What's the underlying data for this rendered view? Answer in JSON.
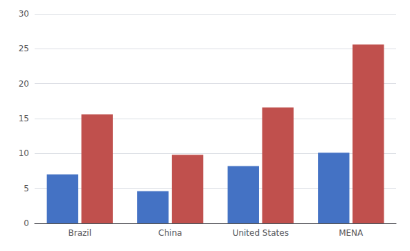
{
  "chart_data": {
    "type": "bar",
    "categories": [
      "Brazil",
      "China",
      "United States",
      "MENA"
    ],
    "series": [
      {
        "color": "#4472C4",
        "values": [
          7.0,
          4.6,
          8.2,
          10.1
        ]
      },
      {
        "color": "#C0504D",
        "values": [
          15.6,
          9.8,
          16.6,
          25.6
        ]
      }
    ],
    "ylim": [
      0,
      30
    ],
    "yticks": [
      0,
      5,
      10,
      15,
      20,
      25,
      30
    ],
    "grid": true
  }
}
